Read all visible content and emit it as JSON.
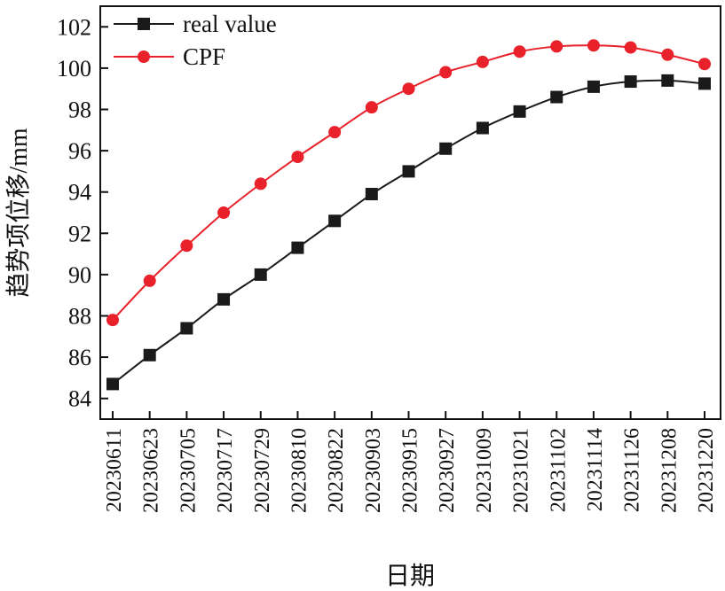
{
  "chart_data": {
    "type": "line",
    "title": "",
    "xlabel": "日期",
    "ylabel": "趋势项位移/mm",
    "categories": [
      "20230611",
      "20230623",
      "20230705",
      "20230717",
      "20230729",
      "20230810",
      "20230822",
      "20230903",
      "20230915",
      "20230927",
      "20231009",
      "20231021",
      "20231102",
      "20231114",
      "20231126",
      "20231208",
      "20231220"
    ],
    "ylim": [
      83,
      103
    ],
    "yticks": [
      84,
      86,
      88,
      90,
      92,
      94,
      96,
      98,
      100,
      102
    ],
    "grid": false,
    "legend_position": "top-left",
    "series": [
      {
        "name": "real value",
        "color": "#1a1a1a",
        "marker": "square",
        "values": [
          84.7,
          86.1,
          87.4,
          88.8,
          90.0,
          91.3,
          92.6,
          93.9,
          95.0,
          96.1,
          97.1,
          97.9,
          98.6,
          99.1,
          99.35,
          99.4,
          99.25
        ]
      },
      {
        "name": "CPF",
        "color": "#e8212a",
        "marker": "circle",
        "values": [
          87.8,
          89.7,
          91.4,
          93.0,
          94.4,
          95.7,
          96.9,
          98.1,
          99.0,
          99.8,
          100.3,
          100.8,
          101.05,
          101.1,
          101.0,
          100.65,
          100.2
        ]
      }
    ]
  }
}
